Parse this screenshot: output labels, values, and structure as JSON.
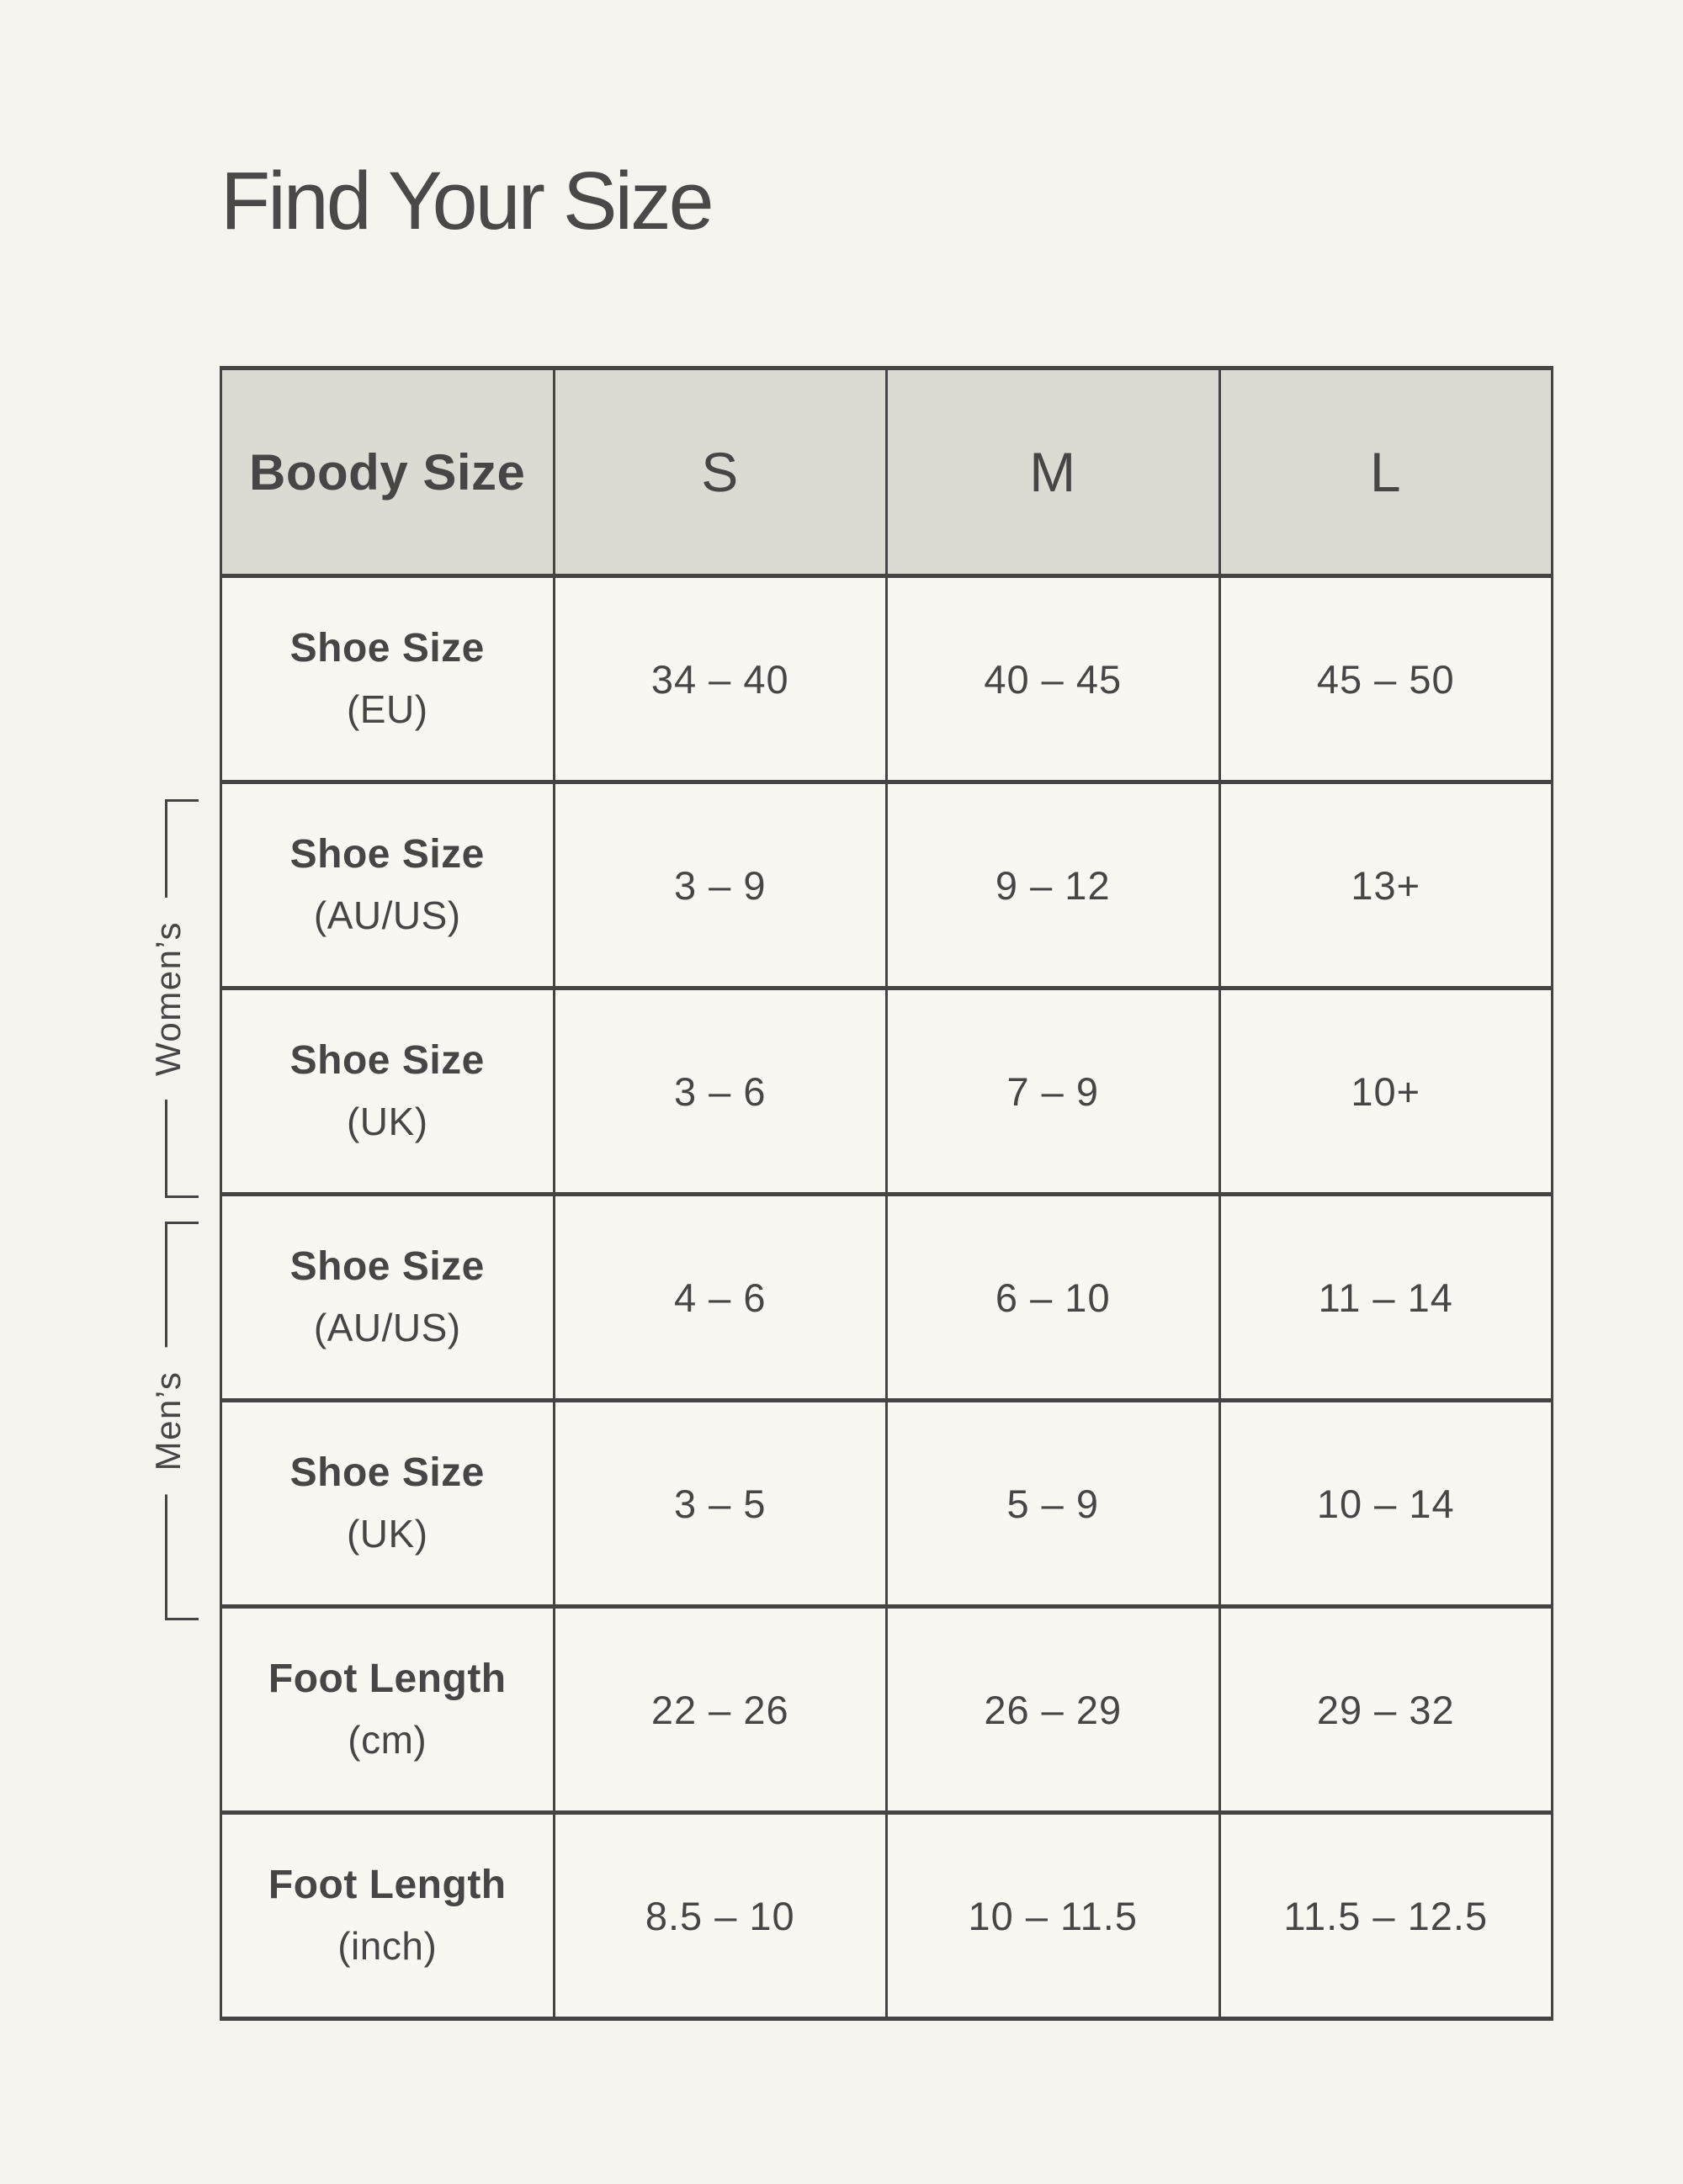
{
  "page": {
    "title": "Find Your Size",
    "background": "#f5f4ee"
  },
  "colors": {
    "header_bg": "#dcdbd3",
    "cell_bg": "#f8f7f1",
    "border": "#454442",
    "text": "#474645",
    "title_text": "#4a4947"
  },
  "table": {
    "header": {
      "label": "Boody Size",
      "sizes": [
        "S",
        "M",
        "L"
      ]
    },
    "rows": [
      {
        "label": "Shoe Size",
        "sublabel": "(EU)",
        "group": "",
        "values": [
          "34 – 40",
          "40 – 45",
          "45 – 50"
        ]
      },
      {
        "label": "Shoe Size",
        "sublabel": "(AU/US)",
        "group": "womens",
        "values": [
          "3 – 9",
          "9 – 12",
          "13+"
        ]
      },
      {
        "label": "Shoe Size",
        "sublabel": "(UK)",
        "group": "womens",
        "values": [
          "3 – 6",
          "7 – 9",
          "10+"
        ]
      },
      {
        "label": "Shoe Size",
        "sublabel": "(AU/US)",
        "group": "mens",
        "values": [
          "4 – 6",
          "6 – 10",
          "11 – 14"
        ]
      },
      {
        "label": "Shoe Size",
        "sublabel": "(UK)",
        "group": "mens",
        "values": [
          "3 – 5",
          "5 – 9",
          "10 – 14"
        ]
      },
      {
        "label": "Foot Length",
        "sublabel": "(cm)",
        "group": "",
        "values": [
          "22 – 26",
          "26 – 29",
          "29 – 32"
        ]
      },
      {
        "label": "Foot Length",
        "sublabel": "(inch)",
        "group": "",
        "values": [
          "8.5 – 10",
          "10 – 11.5",
          "11.5 – 12.5"
        ]
      }
    ]
  },
  "brackets": [
    {
      "label": "Women’s"
    },
    {
      "label": "Men’s"
    }
  ]
}
